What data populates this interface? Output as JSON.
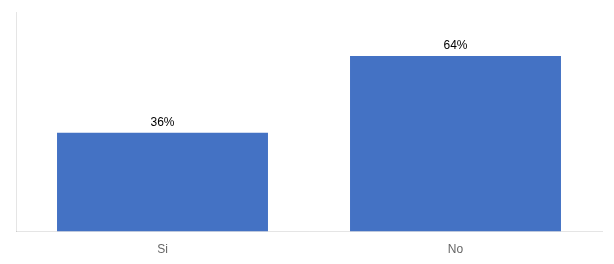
{
  "chart_data": {
    "type": "bar",
    "categories": [
      "Si",
      "No"
    ],
    "values": [
      36,
      64
    ],
    "value_labels": [
      "36%",
      "64%"
    ],
    "data_labels": true,
    "color": "#4472C4",
    "ylim": [
      0,
      80
    ],
    "tick_labels": "x",
    "grid": false
  }
}
